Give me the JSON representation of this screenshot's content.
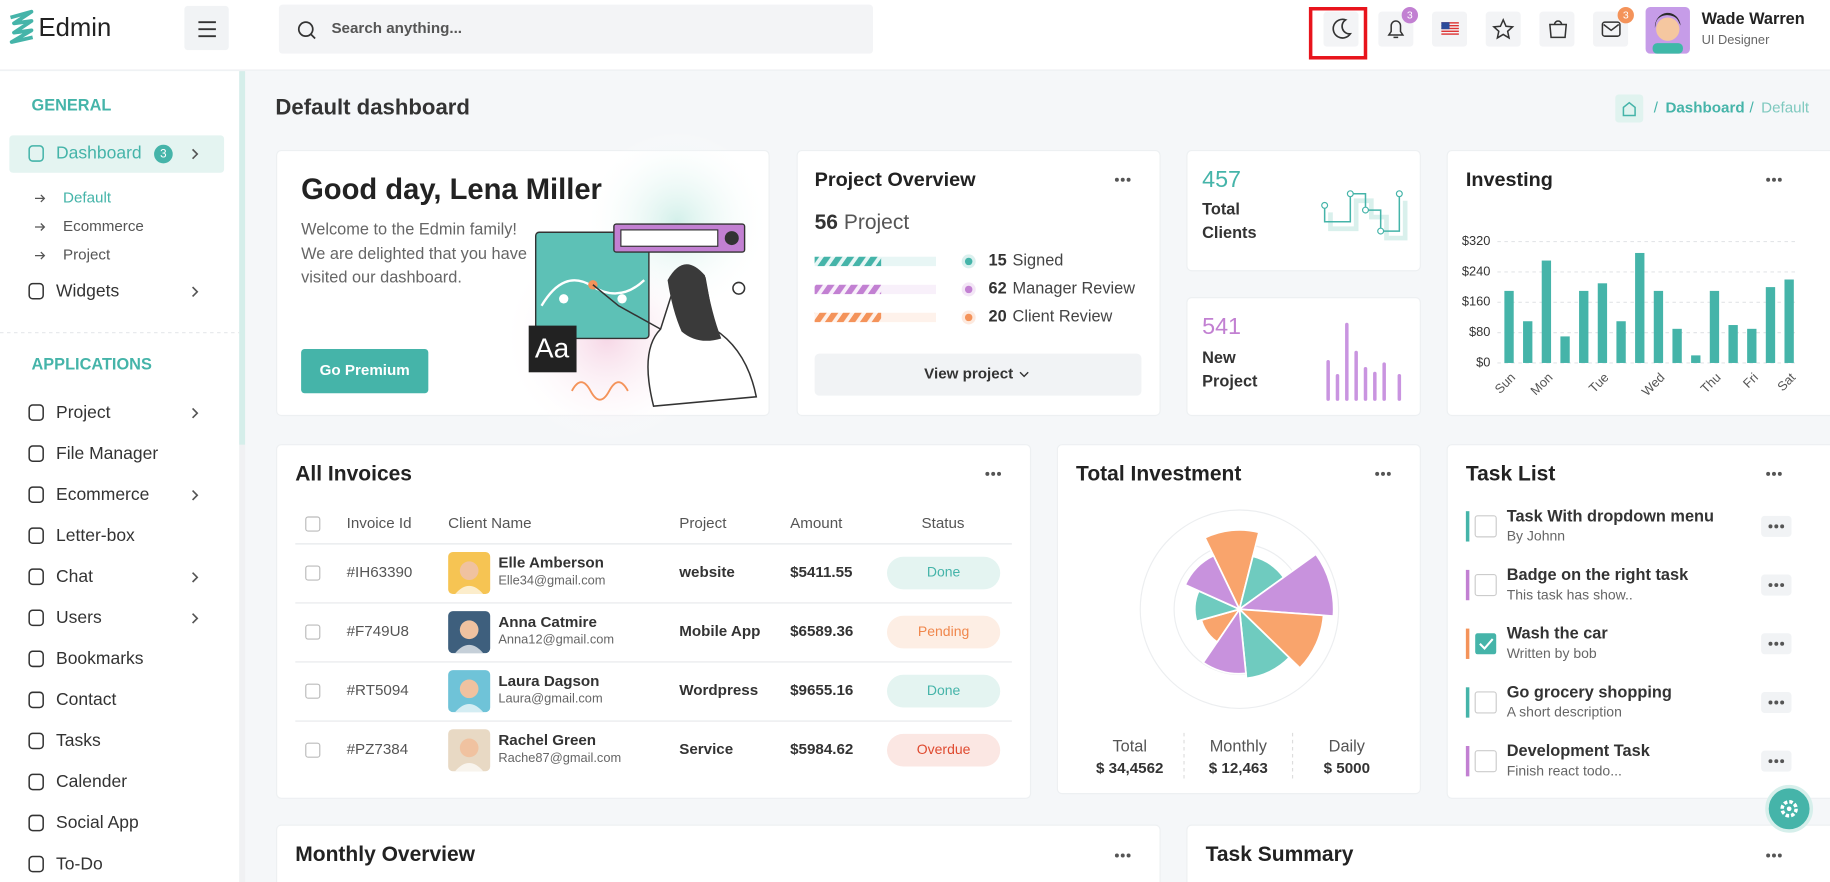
{
  "brand": "Edmin",
  "search_placeholder": "Search anything...",
  "header": {
    "notification_count": "3",
    "message_count": "3",
    "user": {
      "name": "Wade Warren",
      "role": "UI Designer"
    }
  },
  "sidebar": {
    "sections": [
      {
        "title": "GENERAL",
        "items": [
          {
            "label": "Dashboard",
            "badge": "3",
            "expandable": true,
            "active": true,
            "children": [
              "Default",
              "Ecommerce",
              "Project"
            ]
          },
          {
            "label": "Widgets",
            "expandable": true
          }
        ]
      },
      {
        "title": "APPLICATIONS",
        "items": [
          {
            "label": "Project",
            "expandable": true
          },
          {
            "label": "File Manager"
          },
          {
            "label": "Ecommerce",
            "expandable": true
          },
          {
            "label": "Letter-box"
          },
          {
            "label": "Chat",
            "expandable": true
          },
          {
            "label": "Users",
            "expandable": true
          },
          {
            "label": "Bookmarks"
          },
          {
            "label": "Contact"
          },
          {
            "label": "Tasks"
          },
          {
            "label": "Calender"
          },
          {
            "label": "Social App"
          },
          {
            "label": "To-Do"
          }
        ]
      }
    ]
  },
  "page": {
    "title": "Default dashboard",
    "breadcrumb": [
      "Dashboard",
      "Default"
    ],
    "breadcrumb_separator": "/"
  },
  "welcome": {
    "title": "Good day, Lena Miller",
    "text": "Welcome to the Edmin family! We are delighted that you have visited our dashboard.",
    "button": "Go Premium",
    "illustration_text": "Aa"
  },
  "project_overview": {
    "title": "Project Overview",
    "count": 56,
    "count_label": "Project",
    "stats": [
      {
        "value": 15,
        "label": "Signed",
        "color": "#45b4a9"
      },
      {
        "value": 62,
        "label": "Manager Review",
        "color": "#c280d2"
      },
      {
        "value": 20,
        "label": "Client Review",
        "color": "#f4935a"
      }
    ],
    "button": "View project"
  },
  "total_clients": {
    "value": 457,
    "label": "Total Clients"
  },
  "new_project": {
    "value": 541,
    "label": "New Project"
  },
  "investing": {
    "type": "bar",
    "title": "Investing",
    "categories": [
      "Sun",
      null,
      "Mon",
      null,
      null,
      "Tue",
      null,
      null,
      "Wed",
      null,
      null,
      "Thu",
      null,
      "Fri",
      null,
      "Sat"
    ],
    "values": [
      190,
      110,
      270,
      70,
      190,
      210,
      110,
      290,
      190,
      90,
      20,
      190,
      100,
      90,
      200,
      220
    ],
    "color": "#45b4a9",
    "ylim": [
      0,
      320
    ],
    "yticks": [
      {
        "value": 0,
        "label": "$0"
      },
      {
        "value": 80,
        "label": "$80"
      },
      {
        "value": 160,
        "label": "$160"
      },
      {
        "value": 240,
        "label": "$240"
      },
      {
        "value": 320,
        "label": "$320"
      }
    ],
    "grid": true
  },
  "invoices": {
    "title": "All Invoices",
    "columns": [
      "Invoice Id",
      "Client Name",
      "Project",
      "Amount",
      "Status"
    ],
    "rows": [
      {
        "id": "#IH63390",
        "name": "Elle Amberson",
        "email": "Elle34@gmail.com",
        "project": "website",
        "amount": "$5411.55",
        "status": "Done"
      },
      {
        "id": "#F749U8",
        "name": "Anna Catmire",
        "email": "Anna12@gmail.com",
        "project": "Mobile App",
        "amount": "$6589.36",
        "status": "Pending"
      },
      {
        "id": "#RT5094",
        "name": "Laura Dagson",
        "email": "Laura@gmail.com",
        "project": "Wordpress",
        "amount": "$9655.16",
        "status": "Done"
      },
      {
        "id": "#PZ7384",
        "name": "Rachel Green",
        "email": "Rache87@gmail.com",
        "project": "Service",
        "amount": "$5984.62",
        "status": "Overdue"
      }
    ],
    "status_styles": {
      "Done": {
        "bg": "#e4f4f1",
        "fg": "#45b4a9"
      },
      "Pending": {
        "bg": "#fdeee4",
        "fg": "#f0874c"
      },
      "Overdue": {
        "bg": "#fbe7e3",
        "fg": "#df4a2f"
      }
    }
  },
  "total_investment": {
    "type": "polar",
    "title": "Total Investment",
    "values": [
      80,
      55,
      95,
      85,
      70,
      65,
      40,
      45,
      60
    ],
    "colors": [
      "#f9a46c",
      "#6fcbbf",
      "#c892dd",
      "#f9a46c",
      "#6fcbbf",
      "#c892dd",
      "#f9a46c",
      "#6fcbbf",
      "#c892dd"
    ],
    "rlim": [
      0,
      100
    ],
    "stats": [
      {
        "label": "Total",
        "value": "$ 34,4562"
      },
      {
        "label": "Monthly",
        "value": "$ 12,463"
      },
      {
        "label": "Daily",
        "value": "$ 5000"
      }
    ]
  },
  "tasks": {
    "title": "Task List",
    "items": [
      {
        "title": "Task With dropdown menu",
        "subtitle": "By Johnn",
        "color": "#45b4a9",
        "checked": false
      },
      {
        "title": "Badge on the right task",
        "subtitle": "This task has show..",
        "color": "#c280d2",
        "checked": false
      },
      {
        "title": "Wash the car",
        "subtitle": "Written by bob",
        "color": "#f4935a",
        "checked": true
      },
      {
        "title": "Go grocery shopping",
        "subtitle": "A short description",
        "color": "#45b4a9",
        "checked": false
      },
      {
        "title": "Development Task",
        "subtitle": "Finish react todo...",
        "color": "#c280d2",
        "checked": false
      }
    ]
  },
  "monthly_overview": {
    "title": "Monthly Overview"
  },
  "task_summary": {
    "title": "Task Summary"
  }
}
